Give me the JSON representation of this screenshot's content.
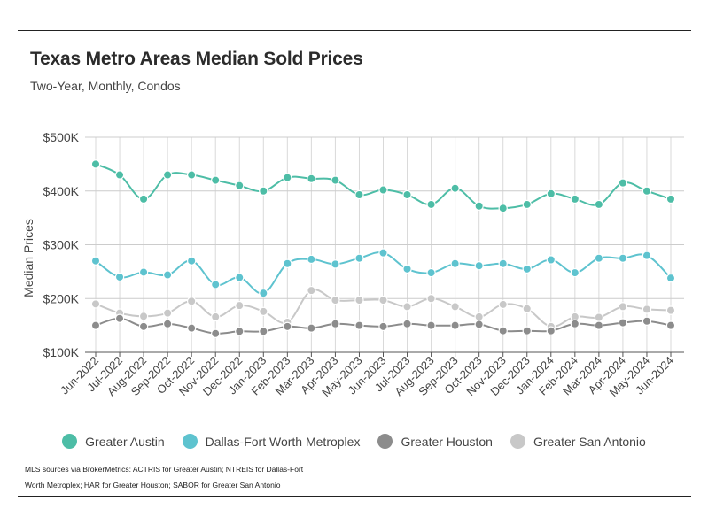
{
  "title": "Texas Metro Areas Median Sold Prices",
  "subtitle": "Two-Year, Monthly, Condos",
  "source_note": {
    "line1": "MLS sources via BrokerMetrics: ACTRIS for Greater Austin; NTREIS for Dallas-Fort",
    "line2": "Worth Metroplex; HAR for Greater Houston; SABOR for Greater San Antonio"
  },
  "chart_data": {
    "type": "line",
    "title": "Texas Metro Areas Median Sold Prices",
    "subtitle": "Two-Year, Monthly, Condos",
    "xlabel": "",
    "ylabel": "Median Prices",
    "ylim": [
      100000,
      500000
    ],
    "yticks": [
      100000,
      200000,
      300000,
      400000,
      500000
    ],
    "ytick_labels": [
      "$100K",
      "$200K",
      "$300K",
      "$400K",
      "$500K"
    ],
    "grid": true,
    "legend_position": "bottom",
    "categories": [
      "Jun-2022",
      "Jul-2022",
      "Aug-2022",
      "Sep-2022",
      "Oct-2022",
      "Nov-2022",
      "Dec-2022",
      "Jan-2023",
      "Feb-2023",
      "Mar-2023",
      "Apr-2023",
      "May-2023",
      "Jun-2023",
      "Jul-2023",
      "Aug-2023",
      "Sep-2023",
      "Oct-2023",
      "Nov-2023",
      "Dec-2023",
      "Jan-2024",
      "Feb-2024",
      "Mar-2024",
      "Apr-2024",
      "May-2024",
      "Jun-2024"
    ],
    "series": [
      {
        "name": "Greater Austin",
        "color": "#4dbda6",
        "values": [
          450000,
          430000,
          385000,
          430000,
          430000,
          420000,
          410000,
          400000,
          425000,
          423000,
          420000,
          393000,
          402000,
          393000,
          375000,
          405000,
          372000,
          368000,
          375000,
          395000,
          385000,
          375000,
          415000,
          400000,
          385000
        ]
      },
      {
        "name": "Dallas-Fort Worth Metroplex",
        "color": "#5ec3cf",
        "values": [
          270000,
          240000,
          249000,
          244000,
          270000,
          226000,
          239000,
          210000,
          265000,
          273000,
          264000,
          275000,
          285000,
          255000,
          248000,
          265000,
          261000,
          265000,
          255000,
          272000,
          248000,
          275000,
          275000,
          280000,
          238000
        ]
      },
      {
        "name": "Greater Houston",
        "color": "#8c8c8c",
        "values": [
          150000,
          163000,
          148000,
          153000,
          145000,
          135000,
          139000,
          139000,
          148000,
          145000,
          153000,
          150000,
          148000,
          153000,
          150000,
          150000,
          152000,
          140000,
          140000,
          140000,
          153000,
          150000,
          155000,
          158000,
          150000
        ]
      },
      {
        "name": "Greater San Antonio",
        "color": "#c8c8c8",
        "values": [
          190000,
          173000,
          167000,
          173000,
          195000,
          166000,
          187000,
          176000,
          156000,
          215000,
          197000,
          197000,
          197000,
          185000,
          200000,
          185000,
          166000,
          189000,
          181000,
          148000,
          166000,
          165000,
          185000,
          180000,
          178000
        ]
      }
    ]
  }
}
